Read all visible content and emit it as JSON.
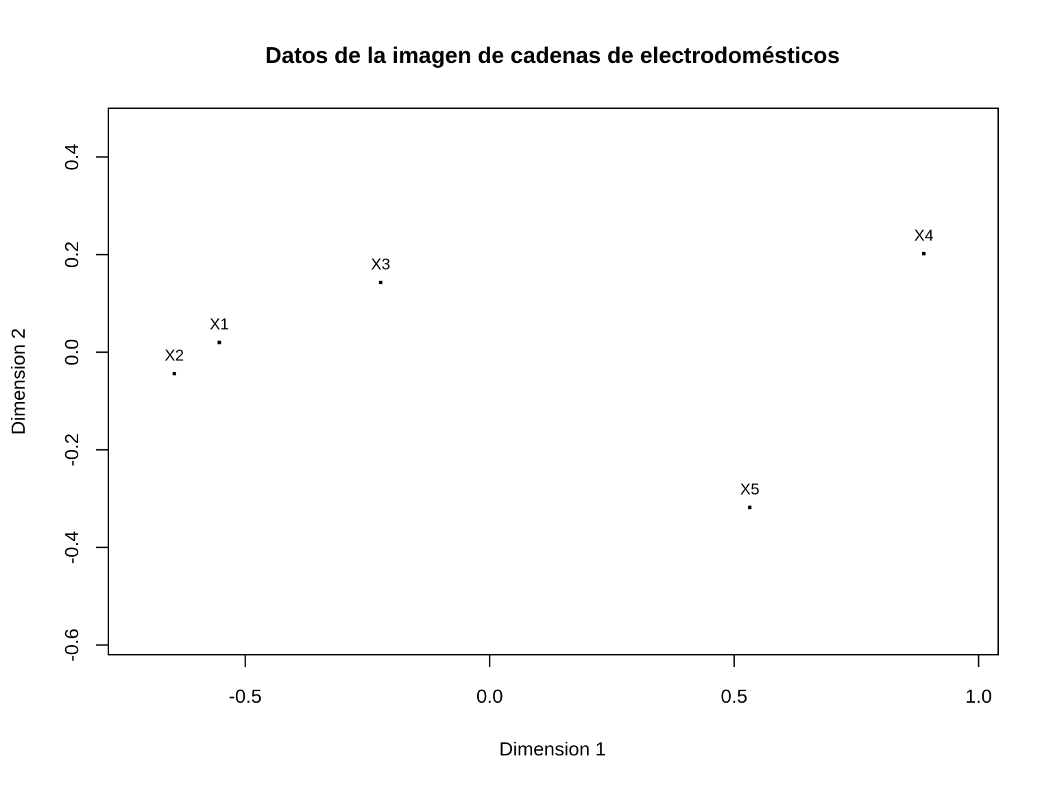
{
  "chart_data": {
    "type": "scatter",
    "title": "Datos de la imagen de cadenas de electrodomésticos",
    "xlabel": "Dimension 1",
    "ylabel": "Dimension 2",
    "xlim": [
      -0.78,
      1.04
    ],
    "ylim": [
      -0.62,
      0.5
    ],
    "xticks": [
      -0.5,
      0.0,
      0.5,
      1.0
    ],
    "xtick_labels": [
      "-0.5",
      "0.0",
      "0.5",
      "1.0"
    ],
    "yticks": [
      -0.6,
      -0.4,
      -0.2,
      0.0,
      0.2,
      0.4
    ],
    "ytick_labels": [
      "-0.6",
      "-0.4",
      "-0.2",
      "0.0",
      "0.2",
      "0.4"
    ],
    "grid": false,
    "points": [
      {
        "label": "X1",
        "x": -0.553,
        "y": 0.02
      },
      {
        "label": "X2",
        "x": -0.645,
        "y": -0.044
      },
      {
        "label": "X3",
        "x": -0.223,
        "y": 0.143
      },
      {
        "label": "X4",
        "x": 0.888,
        "y": 0.202
      },
      {
        "label": "X5",
        "x": 0.532,
        "y": -0.318
      }
    ]
  }
}
